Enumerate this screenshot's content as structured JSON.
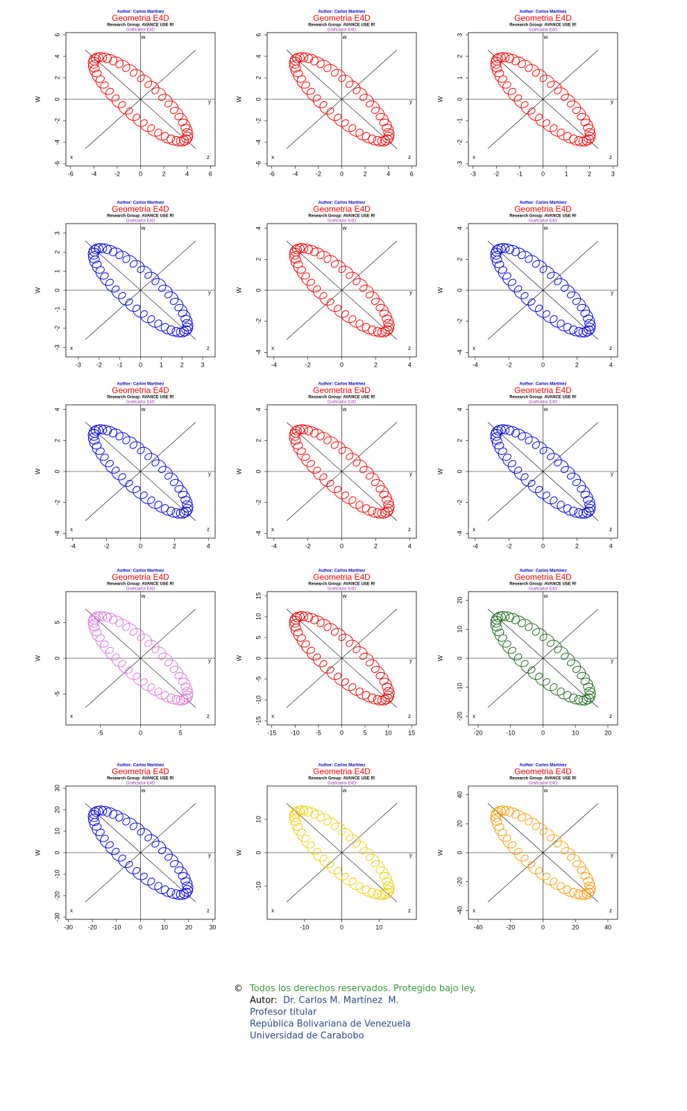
{
  "plots": [
    {
      "author": "Author: Carlos Martínez",
      "title": "Geometria E4D",
      "group": "Research Group: AVANCE USE R!",
      "tool": "Graficador E4D",
      "ylabel": "W",
      "corners": [
        "w",
        "x",
        "y",
        "z"
      ],
      "color": "#ff0000",
      "xlim": [
        -6.4,
        6.4
      ],
      "ylim": [
        -6.2,
        6.2
      ],
      "xticks": [
        -6,
        -4,
        -2,
        0,
        2,
        4,
        6
      ],
      "yticks": [
        -6,
        -4,
        -2,
        0,
        2,
        4,
        6
      ]
    },
    {
      "author": "Author: Carlos Martínez",
      "title": "Geometria E4D",
      "group": "Research Group: AVANCE USE R!",
      "tool": "Graficador E4D",
      "ylabel": "W",
      "corners": [
        "w",
        "x",
        "y",
        "z"
      ],
      "color": "#ff0000",
      "xlim": [
        -6.4,
        6.4
      ],
      "ylim": [
        -6.2,
        6.2
      ],
      "xticks": [
        -6,
        -4,
        -2,
        0,
        2,
        4,
        6
      ],
      "yticks": [
        -6,
        -4,
        -2,
        0,
        2,
        4,
        6
      ]
    },
    {
      "author": "Author: Carlos Martínez",
      "title": "Geometria E4D",
      "group": "Research Group: AVANCE USE R!",
      "tool": "Graficador E4D",
      "ylabel": "W",
      "corners": [
        "w",
        "x",
        "y",
        "z"
      ],
      "color": "#ff0000",
      "xlim": [
        -3.2,
        3.2
      ],
      "ylim": [
        -3.1,
        3.1
      ],
      "xticks": [
        -3,
        -2,
        -1,
        0,
        1,
        2,
        3
      ],
      "yticks": [
        -3,
        -2,
        -1,
        0,
        1,
        2,
        3
      ]
    },
    {
      "author": "Author: Carlos Martínez",
      "title": "Geometria E4D",
      "group": "Research Group: AVANCE USE R!",
      "tool": "Graficador E4D",
      "ylabel": "W",
      "corners": [
        "w",
        "x",
        "y",
        "z"
      ],
      "color": "#0000ee",
      "xlim": [
        -3.6,
        3.6
      ],
      "ylim": [
        -3.5,
        3.5
      ],
      "xticks": [
        -3,
        -2,
        -1,
        0,
        1,
        2,
        3
      ],
      "yticks": [
        -3,
        -2,
        -1,
        0,
        1,
        2,
        3
      ]
    },
    {
      "author": "Author: Carlos Martínez",
      "title": "Geometria E4D",
      "group": "Research Group: AVANCE USE R!",
      "tool": "Graficador E4D",
      "ylabel": "W",
      "corners": [
        "w",
        "x",
        "y",
        "z"
      ],
      "color": "#ff0000",
      "xlim": [
        -4.4,
        4.4
      ],
      "ylim": [
        -4.3,
        4.3
      ],
      "xticks": [
        -4,
        -2,
        0,
        2,
        4
      ],
      "yticks": [
        -4,
        -2,
        0,
        2,
        4
      ]
    },
    {
      "author": "Author: Carlos Martínez",
      "title": "Geometria E4D",
      "group": "Research Group: AVANCE USE R!",
      "tool": "Graficador E4D",
      "ylabel": "W",
      "corners": [
        "w",
        "x",
        "y",
        "z"
      ],
      "color": "#0000ee",
      "xlim": [
        -4.4,
        4.4
      ],
      "ylim": [
        -4.3,
        4.3
      ],
      "xticks": [
        -4,
        -2,
        0,
        2,
        4
      ],
      "yticks": [
        -4,
        -2,
        0,
        2,
        4
      ]
    },
    {
      "author": "Author: Carlos Martínez",
      "title": "Geometria E4D",
      "group": "Research Group: AVANCE USE R!",
      "tool": "Graficador E4D",
      "ylabel": "W",
      "corners": [
        "w",
        "x",
        "y",
        "z"
      ],
      "color": "#0000ee",
      "xlim": [
        -4.4,
        4.4
      ],
      "ylim": [
        -4.3,
        4.3
      ],
      "xticks": [
        -4,
        -2,
        0,
        2,
        4
      ],
      "yticks": [
        -4,
        -2,
        0,
        2,
        4
      ]
    },
    {
      "author": "Author: Carlos Martínez",
      "title": "Geometria E4D",
      "group": "Research Group: AVANCE USE R!",
      "tool": "Graficador E4D",
      "ylabel": "W",
      "corners": [
        "w",
        "x",
        "y",
        "z"
      ],
      "color": "#ff0000",
      "xlim": [
        -4.4,
        4.4
      ],
      "ylim": [
        -4.3,
        4.3
      ],
      "xticks": [
        -4,
        -2,
        0,
        2,
        4
      ],
      "yticks": [
        -4,
        -2,
        0,
        2,
        4
      ]
    },
    {
      "author": "Author: Carlos Martínez",
      "title": "Geometria E4D",
      "group": "Research Group: AVANCE USE R!",
      "tool": "Graficador E4D",
      "ylabel": "W",
      "corners": [
        "w",
        "x",
        "y",
        "z"
      ],
      "color": "#0000ee",
      "xlim": [
        -4.4,
        4.4
      ],
      "ylim": [
        -4.3,
        4.3
      ],
      "xticks": [
        -4,
        -2,
        0,
        2,
        4
      ],
      "yticks": [
        -4,
        -2,
        0,
        2,
        4
      ]
    },
    {
      "author": "Author: Carlos Martínez",
      "title": "Geometria E4D",
      "group": "Research Group: AVANCE USE R!",
      "tool": "Graficador E4D",
      "ylabel": "W",
      "corners": [
        "w",
        "x",
        "y",
        "z"
      ],
      "color": "#e070e0",
      "xlim": [
        -9.3,
        9.3
      ],
      "ylim": [
        -9.3,
        9.3
      ],
      "xticks": [
        -5,
        0,
        5
      ],
      "yticks": [
        -5,
        0,
        5
      ]
    },
    {
      "author": "Author: Carlos Martínez",
      "title": "Geometria E4D",
      "group": "Research Group: AVANCE USE R!",
      "tool": "Graficador E4D",
      "ylabel": "W",
      "corners": [
        "w",
        "x",
        "y",
        "z"
      ],
      "color": "#ee0000",
      "xlim": [
        -16,
        16
      ],
      "ylim": [
        -16,
        16
      ],
      "xticks": [
        -15,
        -10,
        -5,
        0,
        5,
        10,
        15
      ],
      "yticks": [
        -15,
        -10,
        -5,
        0,
        5,
        10,
        15
      ]
    },
    {
      "author": "Author: Carlos Martínez",
      "title": "Geometria E4D",
      "group": "Research Group: AVANCE USE R!",
      "tool": "Graficador E4D",
      "ylabel": "W",
      "corners": [
        "w",
        "x",
        "y",
        "z"
      ],
      "color": "#1a6a1a",
      "xlim": [
        -23,
        23
      ],
      "ylim": [
        -23,
        23
      ],
      "xticks": [
        -20,
        -10,
        0,
        10,
        20
      ],
      "yticks": [
        -20,
        -10,
        0,
        10,
        20
      ]
    },
    {
      "author": "Author: Carlos Martínez",
      "title": "Geometria E4D",
      "group": "Research Group: AVANCE USE R!",
      "tool": "Graficador E4D",
      "ylabel": "W",
      "corners": [
        "w",
        "x",
        "y",
        "z"
      ],
      "color": "#0000ee",
      "xlim": [
        -31,
        31
      ],
      "ylim": [
        -31,
        31
      ],
      "xticks": [
        -30,
        -20,
        -10,
        0,
        10,
        20,
        30
      ],
      "yticks": [
        -30,
        -20,
        -10,
        0,
        10,
        20,
        30
      ]
    },
    {
      "author": "Author: Carlos Martínez",
      "title": "Geometria E4D",
      "group": "Research Group: AVANCE USE R!",
      "tool": "Graficador E4D",
      "ylabel": "W",
      "corners": [
        "w",
        "x",
        "y",
        "z"
      ],
      "color": "#f2cc00",
      "xlim": [
        -20,
        20
      ],
      "ylim": [
        -20,
        20
      ],
      "xticks": [
        -10,
        0,
        10
      ],
      "yticks": [
        -10,
        0,
        10
      ]
    },
    {
      "author": "Author: Carlos Martínez",
      "title": "Geometria E4D",
      "group": "Research Group: AVANCE USE R!",
      "tool": "Graficador E4D",
      "ylabel": "W",
      "corners": [
        "w",
        "x",
        "y",
        "z"
      ],
      "color": "#ff9900",
      "xlim": [
        -46,
        46
      ],
      "ylim": [
        -46,
        46
      ],
      "xticks": [
        -40,
        -20,
        0,
        20,
        40
      ],
      "yticks": [
        -40,
        -20,
        0,
        20,
        40
      ]
    }
  ],
  "footer": {
    "copyright": "©",
    "rights": "Todos los derechos reservados. Protegido bajo ley.",
    "author_label": "Autor:",
    "author": "Dr. Carlos M. Martínez  M.",
    "lines": [
      "Profesor titular",
      "República Bolivariana de Venezuela",
      "Universidad de Carabobo"
    ]
  }
}
